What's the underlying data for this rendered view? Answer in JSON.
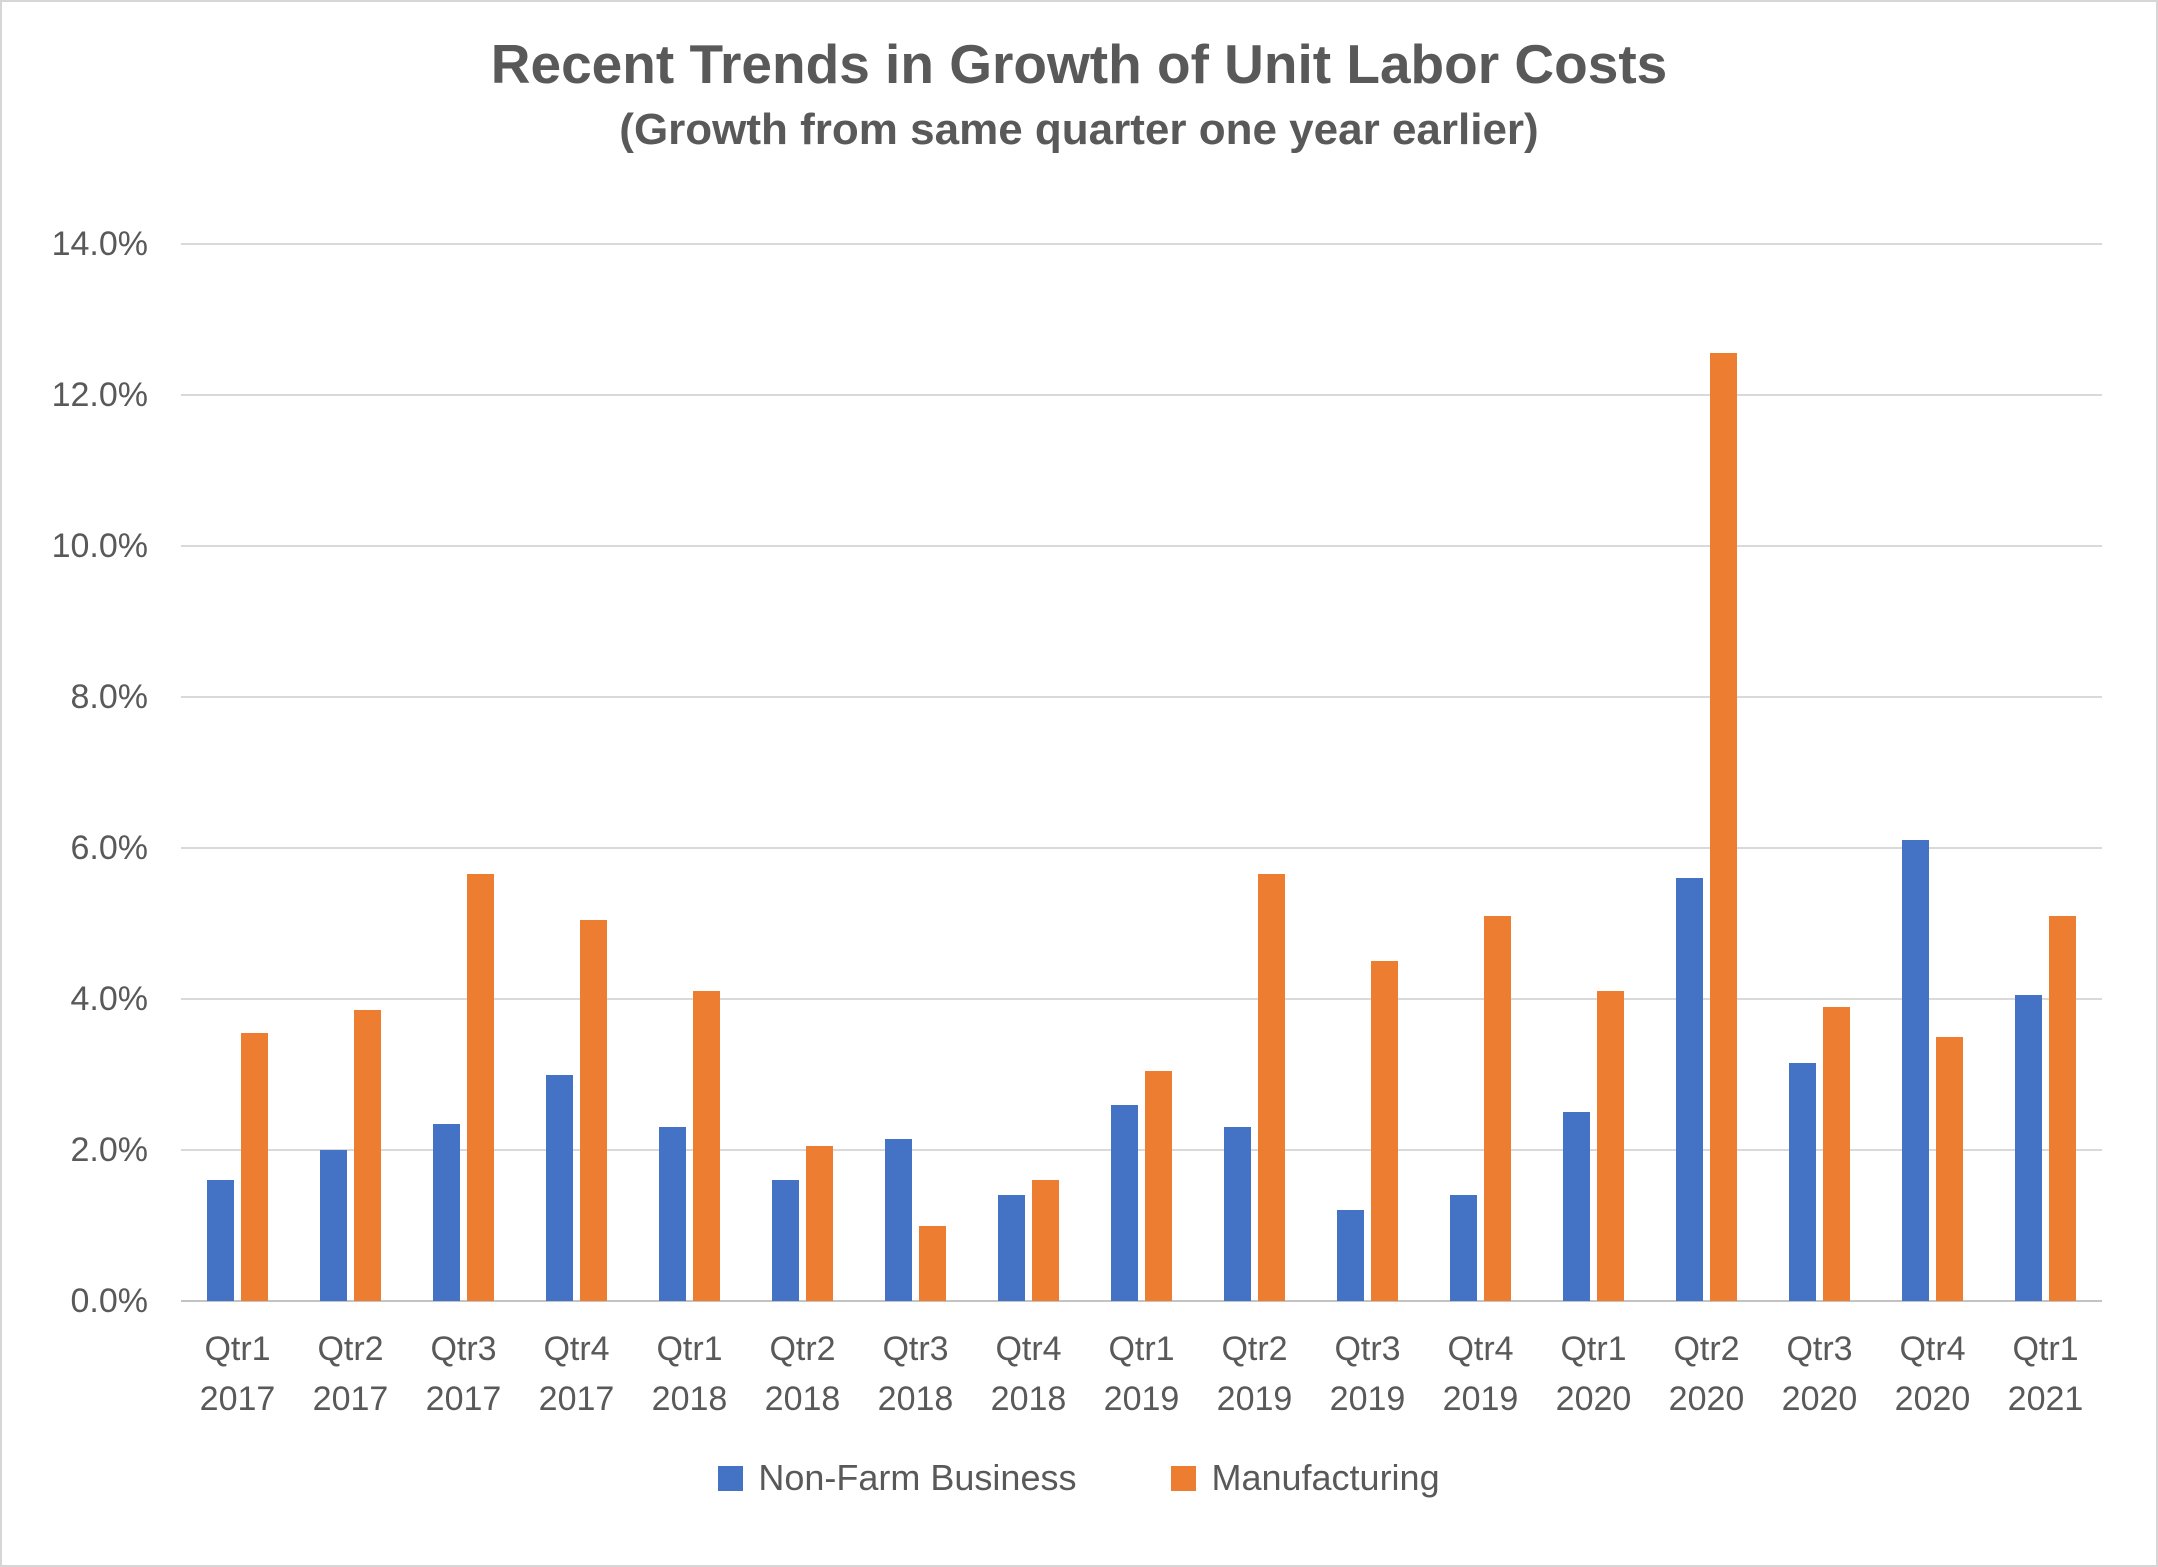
{
  "title": "Recent Trends in Growth of Unit Labor Costs",
  "subtitle": "(Growth from same quarter one year earlier)",
  "colors": {
    "nonfarm_blue": "#4472C4",
    "manufacturing_orange": "#ED7D31",
    "text_gray": "#595959",
    "gridline_gray": "#D9D9D9",
    "baseline_gray": "#C3C3C3"
  },
  "chart_data": {
    "type": "bar",
    "title": "Recent Trends in Growth of Unit Labor Costs",
    "subtitle": "(Growth from same quarter one year earlier)",
    "categories": [
      "Qtr1 2017",
      "Qtr2 2017",
      "Qtr3 2017",
      "Qtr4 2017",
      "Qtr1 2018",
      "Qtr2 2018",
      "Qtr3 2018",
      "Qtr4 2018",
      "Qtr1 2019",
      "Qtr2 2019",
      "Qtr3 2019",
      "Qtr4 2019",
      "Qtr1 2020",
      "Qtr2 2020",
      "Qtr3 2020",
      "Qtr4 2020",
      "Qtr1 2021"
    ],
    "series": [
      {
        "name": "Non-Farm Business",
        "color": "#4472C4",
        "values": [
          1.6,
          2.0,
          2.35,
          3.0,
          2.3,
          1.6,
          2.15,
          1.4,
          2.6,
          2.3,
          1.2,
          1.4,
          2.5,
          5.6,
          3.15,
          6.1,
          4.05
        ]
      },
      {
        "name": "Manufacturing",
        "color": "#ED7D31",
        "values": [
          3.55,
          3.85,
          5.65,
          5.05,
          4.1,
          2.05,
          1.0,
          1.6,
          3.05,
          5.65,
          4.5,
          5.1,
          4.1,
          12.55,
          3.9,
          3.5,
          5.1
        ]
      }
    ],
    "xlabel": "",
    "ylabel": "",
    "ylim": [
      0,
      14
    ],
    "y_tick_step": 2,
    "y_tick_labels": [
      "0.0%",
      "2.0%",
      "4.0%",
      "6.0%",
      "8.0%",
      "10.0%",
      "12.0%",
      "14.0%"
    ],
    "grid": true,
    "legend_position": "bottom",
    "value_unit": "percent"
  }
}
